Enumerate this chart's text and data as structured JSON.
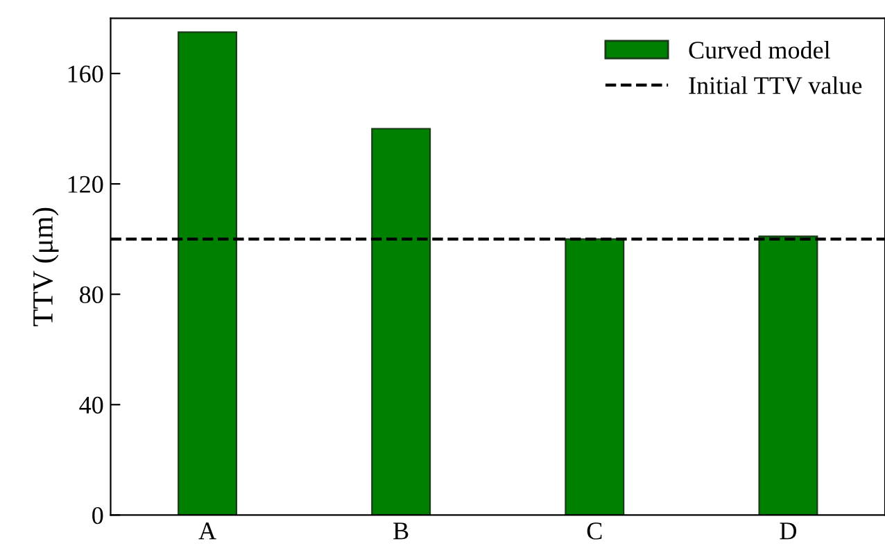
{
  "chart_data": {
    "type": "bar",
    "ylabel": "TTV (μm)",
    "categories": [
      "A",
      "B",
      "C",
      "D"
    ],
    "series": [
      {
        "name": "Curved model",
        "color": "#008000",
        "values": [
          175,
          140,
          100,
          101
        ]
      }
    ],
    "ylim": [
      0,
      180
    ],
    "yticks": [
      0,
      40,
      80,
      120,
      160
    ],
    "ref_lines": [
      {
        "axis": "y",
        "value": 100,
        "label": "Initial TTV value",
        "color": "#000000",
        "line_style": "dashed"
      }
    ],
    "legend": "top right",
    "grid": false
  }
}
